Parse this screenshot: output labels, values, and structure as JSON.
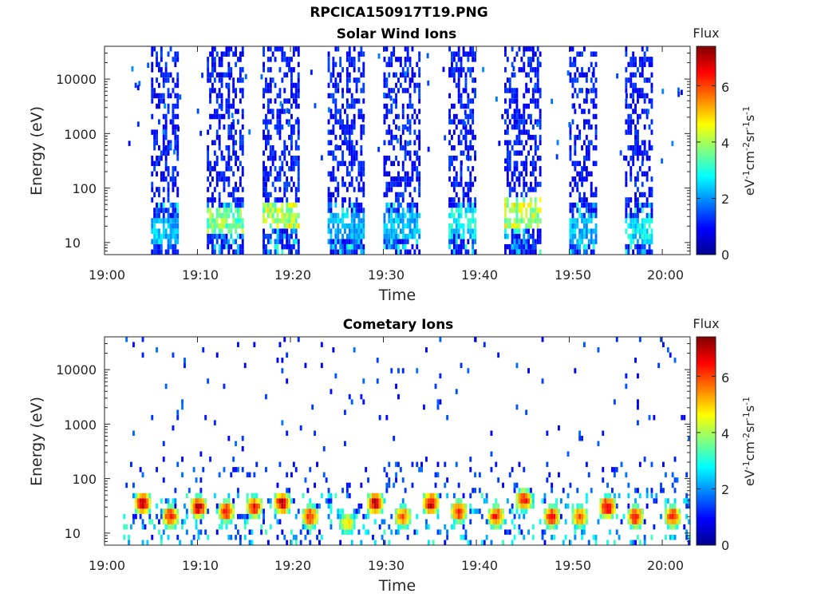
{
  "figure": {
    "title": "RPCICA150917T19.PNG"
  },
  "chart_data": [
    {
      "type": "heatmap",
      "title": "Solar Wind Ions",
      "xlabel": "Time",
      "ylabel": "Energy (eV)",
      "x_ticks": [
        "19:00",
        "19:10",
        "19:20",
        "19:30",
        "19:40",
        "19:50",
        "20:00"
      ],
      "y_scale": "log",
      "y_ticks": [
        "10",
        "100",
        "1000",
        "10000"
      ],
      "xlim": [
        "19:00",
        "20:03"
      ],
      "ylim": [
        6,
        40000
      ],
      "colorbar": {
        "title": "Flux",
        "label": "eV-1cm-2sr-1s-1",
        "ticks": [
          "0",
          "2",
          "4",
          "6"
        ],
        "range": [
          0,
          7.4
        ]
      },
      "bursts": [
        {
          "start": "19:05",
          "end": "19:08",
          "peak_energy_eV": 15,
          "peak_flux": 2.5
        },
        {
          "start": "19:11",
          "end": "19:15",
          "peak_energy_eV": 25,
          "peak_flux": 4.0
        },
        {
          "start": "19:17",
          "end": "19:21",
          "peak_energy_eV": 30,
          "peak_flux": 4.5
        },
        {
          "start": "19:24",
          "end": "19:28",
          "peak_energy_eV": 20,
          "peak_flux": 2.5
        },
        {
          "start": "19:30",
          "end": "19:34",
          "peak_energy_eV": 20,
          "peak_flux": 2.5
        },
        {
          "start": "19:37",
          "end": "19:40",
          "peak_energy_eV": 25,
          "peak_flux": 3.0
        },
        {
          "start": "19:43",
          "end": "19:47",
          "peak_energy_eV": 35,
          "peak_flux": 4.5
        },
        {
          "start": "19:50",
          "end": "19:53",
          "peak_energy_eV": 15,
          "peak_flux": 2.5
        },
        {
          "start": "19:56",
          "end": "19:59",
          "peak_energy_eV": 15,
          "peak_flux": 3.0
        }
      ]
    },
    {
      "type": "heatmap",
      "title": "Cometary Ions",
      "xlabel": "Time",
      "ylabel": "Energy (eV)",
      "x_ticks": [
        "19:00",
        "19:10",
        "19:20",
        "19:30",
        "19:40",
        "19:50",
        "20:00"
      ],
      "y_scale": "log",
      "y_ticks": [
        "10",
        "100",
        "1000",
        "10000"
      ],
      "xlim": [
        "19:00",
        "20:03"
      ],
      "ylim": [
        6,
        40000
      ],
      "colorbar": {
        "title": "Flux",
        "label": "eV-1cm-2sr-1s-1",
        "ticks": [
          "0",
          "2",
          "4",
          "6"
        ],
        "range": [
          0,
          7.4
        ]
      },
      "hot_spots": [
        {
          "time": "19:04",
          "energy_eV": 35,
          "flux": 7.0
        },
        {
          "time": "19:07",
          "energy_eV": 20,
          "flux": 6.5
        },
        {
          "time": "19:10",
          "energy_eV": 30,
          "flux": 7.0
        },
        {
          "time": "19:13",
          "energy_eV": 25,
          "flux": 6.5
        },
        {
          "time": "19:16",
          "energy_eV": 30,
          "flux": 6.5
        },
        {
          "time": "19:19",
          "energy_eV": 35,
          "flux": 7.0
        },
        {
          "time": "19:22",
          "energy_eV": 20,
          "flux": 6.5
        },
        {
          "time": "19:26",
          "energy_eV": 15,
          "flux": 5.0
        },
        {
          "time": "19:29",
          "energy_eV": 35,
          "flux": 7.0
        },
        {
          "time": "19:32",
          "energy_eV": 20,
          "flux": 6.0
        },
        {
          "time": "19:35",
          "energy_eV": 35,
          "flux": 7.0
        },
        {
          "time": "19:38",
          "energy_eV": 25,
          "flux": 6.5
        },
        {
          "time": "19:42",
          "energy_eV": 20,
          "flux": 6.5
        },
        {
          "time": "19:45",
          "energy_eV": 40,
          "flux": 6.5
        },
        {
          "time": "19:48",
          "energy_eV": 20,
          "flux": 6.5
        },
        {
          "time": "19:51",
          "energy_eV": 20,
          "flux": 6.0
        },
        {
          "time": "19:54",
          "energy_eV": 30,
          "flux": 7.0
        },
        {
          "time": "19:57",
          "energy_eV": 20,
          "flux": 6.5
        },
        {
          "time": "20:01",
          "energy_eV": 20,
          "flux": 6.5
        }
      ]
    }
  ]
}
